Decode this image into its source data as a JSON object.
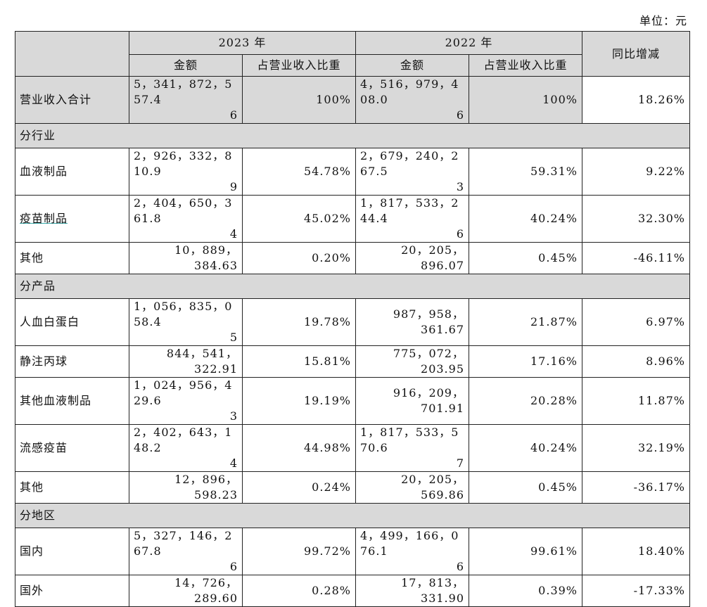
{
  "unit_label": "单位：元",
  "header": {
    "year_2023": "2023 年",
    "year_2022": "2022 年",
    "yoy": "同比增减",
    "amount": "金额",
    "ratio": "占营业收入比重"
  },
  "total": {
    "label": "营业收入合计",
    "amt2023_a": "5，341，872，557.4",
    "amt2023_b": "6",
    "pct2023": "100%",
    "amt2022_a": "4，516，979，408.0",
    "amt2022_b": "6",
    "pct2022": "100%",
    "yoy": "18.26%"
  },
  "sections": {
    "industry": "分行业",
    "product": "分产品",
    "region": "分地区"
  },
  "rows": {
    "blood": {
      "label": "血液制品",
      "a23a": "2，926，332，810.9",
      "a23b": "9",
      "p23": "54.78%",
      "a22a": "2，679，240，267.5",
      "a22b": "3",
      "p22": "59.31%",
      "yoy": "9.22%"
    },
    "vaccine": {
      "label": "疫苗制品",
      "a23a": "2，404，650，361.8",
      "a23b": "4",
      "p23": "45.02%",
      "a22a": "1，817，533，244.4",
      "a22b": "6",
      "p22": "40.24%",
      "yoy": "32.30%"
    },
    "other1": {
      "label": "其他",
      "a23": "10，889，384.63",
      "p23": "0.20%",
      "a22": "20，205，896.07",
      "p22": "0.45%",
      "yoy": "-46.11%"
    },
    "albumin": {
      "label": "人血白蛋白",
      "a23a": "1，056，835，058.4",
      "a23b": "5",
      "p23": "19.78%",
      "a22": "987，958，361.67",
      "p22": "21.87%",
      "yoy": "6.97%"
    },
    "ivig": {
      "label": "静注丙球",
      "a23": "844，541，322.91",
      "p23": "15.81%",
      "a22": "775，072，203.95",
      "p22": "17.16%",
      "yoy": "8.96%"
    },
    "otherblood": {
      "label": "其他血液制品",
      "a23a": "1，024，956，429.6",
      "a23b": "3",
      "p23": "19.19%",
      "a22": "916，209，701.91",
      "p22": "20.28%",
      "yoy": "11.87%"
    },
    "flu": {
      "label": "流感疫苗",
      "a23a": "2，402，643，148.2",
      "a23b": "4",
      "p23": "44.98%",
      "a22a": "1，817，533，570.6",
      "a22b": "7",
      "p22": "40.24%",
      "yoy": "32.19%"
    },
    "other2": {
      "label": "其他",
      "a23": "12，896，598.23",
      "p23": "0.24%",
      "a22": "20，205，569.86",
      "p22": "0.45%",
      "yoy": "-36.17%"
    },
    "domestic": {
      "label": "国内",
      "a23a": "5，327，146，267.8",
      "a23b": "6",
      "p23": "99.72%",
      "a22a": "4，499，166，076.1",
      "a22b": "6",
      "p22": "99.61%",
      "yoy": "18.40%"
    },
    "foreign": {
      "label": "国外",
      "a23": "14，726，289.60",
      "p23": "0.28%",
      "a22": "17，813，331.90",
      "p22": "0.39%",
      "yoy": "-17.33%"
    }
  }
}
